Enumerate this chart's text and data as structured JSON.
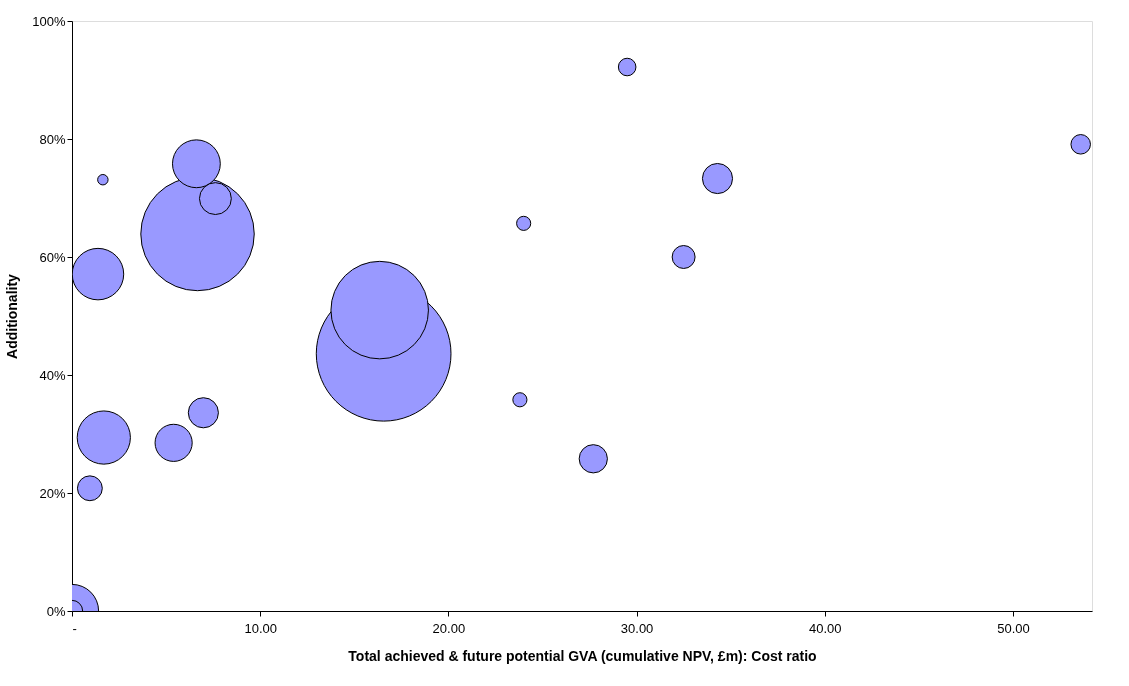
{
  "chart_data": {
    "type": "bubble",
    "xlabel": "Total achieved & future potential GVA (cumulative NPV, £m): Cost ratio",
    "ylabel": "Additionality",
    "xlim": [
      0,
      54.2
    ],
    "ylim": [
      0,
      100
    ],
    "xticks": [
      {
        "value": 0,
        "label": "-"
      },
      {
        "value": 10,
        "label": "10.00"
      },
      {
        "value": 20,
        "label": "20.00"
      },
      {
        "value": 30,
        "label": "30.00"
      },
      {
        "value": 40,
        "label": "40.00"
      },
      {
        "value": 50,
        "label": "50.00"
      }
    ],
    "yticks": [
      {
        "value": 0,
        "label": "0%"
      },
      {
        "value": 20,
        "label": "20%"
      },
      {
        "value": 40,
        "label": "40%"
      },
      {
        "value": 60,
        "label": "60%"
      },
      {
        "value": 80,
        "label": "80%"
      },
      {
        "value": 100,
        "label": "100%"
      }
    ],
    "grid": false,
    "legend": false,
    "series": [
      {
        "color": "#9999ff",
        "x": [
          6.67,
          53.6,
          29.5,
          1.64,
          6.61,
          7.62,
          1.38,
          24.0,
          34.3,
          32.5,
          16.56,
          16.35,
          23.8,
          27.7,
          1.69,
          5.4,
          6.98,
          0.95,
          0,
          0
        ],
        "values": [
          63.9,
          79.1,
          92.2,
          73.1,
          75.8,
          69.9,
          57.1,
          65.7,
          73.3,
          60.0,
          43.6,
          51.0,
          35.8,
          25.8,
          29.4,
          28.5,
          33.6,
          20.8,
          0,
          0
        ],
        "sizes": [
          0.709,
          0.021,
          0.017,
          0.006,
          0.126,
          0.056,
          0.146,
          0.011,
          0.05,
          0.029,
          1,
          0.524,
          0.011,
          0.044,
          0.156,
          0.076,
          0.05,
          0.034,
          0.156,
          0.025
        ]
      }
    ]
  }
}
